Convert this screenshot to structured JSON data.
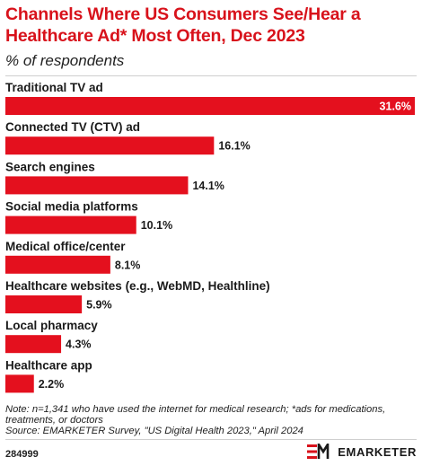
{
  "header": {
    "title_line1": "Channels Where US Consumers See/Hear a",
    "title_line2": "Healthcare Ad* Most Often, Dec 2023",
    "subtitle": "% of respondents"
  },
  "chart_data": {
    "type": "bar",
    "orientation": "horizontal",
    "categories": [
      "Traditional TV ad",
      "Connected TV (CTV) ad",
      "Search engines",
      "Social media platforms",
      "Medical office/center",
      "Healthcare websites (e.g., WebMD, Healthline)",
      "Local pharmacy",
      "Healthcare app"
    ],
    "values": [
      31.6,
      16.1,
      14.1,
      10.1,
      8.1,
      5.9,
      4.3,
      2.2
    ],
    "value_labels": [
      "31.6%",
      "16.1%",
      "14.1%",
      "10.1%",
      "8.1%",
      "5.9%",
      "4.3%",
      "2.2%"
    ],
    "unit": "%",
    "bar_color": "#e4101e",
    "xlim": [
      0,
      31.6
    ],
    "grid": false,
    "legend": "none"
  },
  "footer": {
    "note_line1": "Note: n=1,341 who have used the internet for medical research; *ads for medications,",
    "note_line2": "treatments, or doctors",
    "source": "Source: EMARKETER Survey, \"US Digital Health 2023,\" April 2024",
    "chart_id": "284999",
    "brand": "EMARKETER"
  }
}
